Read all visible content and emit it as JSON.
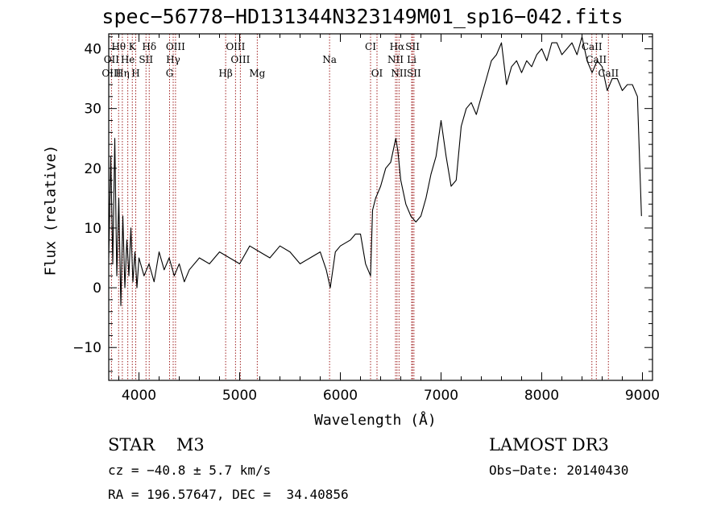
{
  "page": {
    "title": "spec−56778−HD131344N323149M01_sp16−042.fits",
    "info": {
      "class_line": "STAR    M3",
      "survey": "LAMOST DR3",
      "cz": "cz = −40.8 ± 5.7 km/s",
      "obs_date": "Obs−Date: 20140430",
      "coords": "RA = 196.57647, DEC =  34.40856"
    }
  },
  "chart_data": {
    "type": "line",
    "title": "spec−56778−HD131344N323149M01_sp16−042.fits",
    "xlabel": "Wavelength (Å)",
    "ylabel": "Flux (relative)",
    "xlim": [
      3700,
      9100
    ],
    "ylim": [
      -15.5,
      42.5
    ],
    "xticks": [
      4000,
      5000,
      6000,
      7000,
      8000,
      9000
    ],
    "yticks": [
      -10,
      0,
      10,
      20,
      30,
      40
    ],
    "xtick_labels": [
      "4000",
      "5000",
      "6000",
      "7000",
      "8000",
      "9000"
    ],
    "ytick_labels": [
      "−10",
      "0",
      "10",
      "20",
      "30",
      "40"
    ],
    "grid": false,
    "line_color": "#000000",
    "marker_line_color": "#a02020",
    "spectrum": {
      "x": [
        3700,
        3720,
        3740,
        3760,
        3780,
        3800,
        3820,
        3840,
        3860,
        3880,
        3900,
        3920,
        3940,
        3960,
        3980,
        4000,
        4050,
        4100,
        4150,
        4200,
        4250,
        4300,
        4350,
        4400,
        4450,
        4500,
        4600,
        4700,
        4800,
        4900,
        5000,
        5100,
        5200,
        5300,
        5400,
        5500,
        5600,
        5700,
        5800,
        5860,
        5900,
        5950,
        6000,
        6100,
        6150,
        6200,
        6250,
        6300,
        6320,
        6350,
        6400,
        6450,
        6500,
        6550,
        6570,
        6600,
        6650,
        6700,
        6750,
        6800,
        6850,
        6900,
        6950,
        7000,
        7050,
        7100,
        7150,
        7200,
        7250,
        7300,
        7350,
        7400,
        7450,
        7500,
        7550,
        7600,
        7650,
        7700,
        7750,
        7800,
        7850,
        7900,
        7950,
        8000,
        8050,
        8100,
        8150,
        8200,
        8250,
        8300,
        8350,
        8400,
        8450,
        8500,
        8550,
        8600,
        8650,
        8700,
        8750,
        8800,
        8850,
        8900,
        8950,
        8990
      ],
      "y": [
        5,
        22,
        4,
        25,
        2,
        15,
        -3,
        12,
        0,
        8,
        2,
        10,
        1,
        6,
        0,
        5,
        2,
        4,
        1,
        6,
        3,
        5,
        2,
        4,
        1,
        3,
        5,
        4,
        6,
        5,
        4,
        7,
        6,
        5,
        7,
        6,
        4,
        5,
        6,
        3,
        0,
        6,
        7,
        8,
        9,
        9,
        4,
        2,
        13,
        15,
        17,
        20,
        21,
        25,
        23,
        18,
        14,
        12,
        11,
        12,
        15,
        19,
        22,
        28,
        22,
        17,
        18,
        27,
        30,
        31,
        29,
        32,
        35,
        38,
        39,
        41,
        34,
        37,
        38,
        36,
        38,
        37,
        39,
        40,
        38,
        41,
        41,
        39,
        40,
        41,
        39,
        42,
        38,
        36,
        38,
        37,
        33,
        35,
        35,
        33,
        34,
        34,
        32,
        12
      ]
    },
    "spectral_lines": [
      {
        "label": "Hθ",
        "wavelength": 3798,
        "row": 1
      },
      {
        "label": "K",
        "wavelength": 3934,
        "row": 1
      },
      {
        "label": "Hδ",
        "wavelength": 4102,
        "row": 1
      },
      {
        "label": "OIII",
        "wavelength": 4363,
        "row": 1
      },
      {
        "label": "OIII",
        "wavelength": 4959,
        "row": 1
      },
      {
        "label": "Na",
        "wavelength": 5893,
        "row": 2
      },
      {
        "label": "CI",
        "wavelength": 6300,
        "row": 1
      },
      {
        "label": "Hα",
        "wavelength": 6563,
        "row": 1
      },
      {
        "label": "SII",
        "wavelength": 6717,
        "row": 1
      },
      {
        "label": "CaII",
        "wavelength": 8498,
        "row": 1
      },
      {
        "label": "OII",
        "wavelength": 3727,
        "row": 2
      },
      {
        "label": "He",
        "wavelength": 3889,
        "row": 2
      },
      {
        "label": "SII",
        "wavelength": 4070,
        "row": 2
      },
      {
        "label": "Hγ",
        "wavelength": 4340,
        "row": 2
      },
      {
        "label": "OIII",
        "wavelength": 5007,
        "row": 2
      },
      {
        "label": "NII",
        "wavelength": 6548,
        "row": 2
      },
      {
        "label": "Li",
        "wavelength": 6708,
        "row": 2
      },
      {
        "label": "CaII",
        "wavelength": 8542,
        "row": 2
      },
      {
        "label": "OIII",
        "wavelength": 3727,
        "row": 3
      },
      {
        "label": "Hη",
        "wavelength": 3835,
        "row": 3
      },
      {
        "label": "H",
        "wavelength": 3968,
        "row": 3
      },
      {
        "label": "G",
        "wavelength": 4304,
        "row": 3
      },
      {
        "label": "Hβ",
        "wavelength": 4861,
        "row": 3
      },
      {
        "label": "Mg",
        "wavelength": 5175,
        "row": 3
      },
      {
        "label": "OI",
        "wavelength": 6364,
        "row": 3
      },
      {
        "label": "NII",
        "wavelength": 6583,
        "row": 3
      },
      {
        "label": "SII",
        "wavelength": 6731,
        "row": 3
      },
      {
        "label": "CaII",
        "wavelength": 8662,
        "row": 3
      }
    ]
  }
}
